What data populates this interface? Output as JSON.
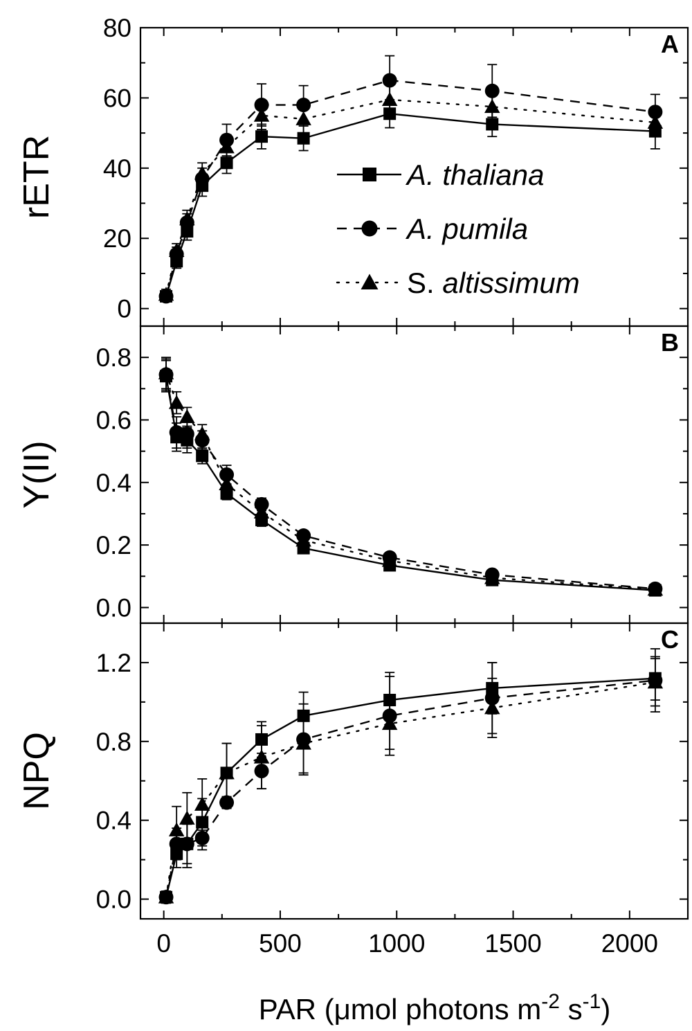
{
  "chart_data": {
    "type": "line",
    "x_axis": {
      "label_text": "PAR (",
      "label_mu": "μ",
      "label_unit": "mol photons m",
      "label_sup1": "-2",
      "label_s": " s",
      "label_sup2": "-1",
      "label_close": ")",
      "xlim": [
        -100,
        2250
      ],
      "ticks": [
        0,
        500,
        1000,
        1500,
        2000
      ],
      "tick_labels": [
        "0",
        "500",
        "1000",
        "1500",
        "2000"
      ]
    },
    "x": [
      10,
      55,
      100,
      165,
      270,
      420,
      600,
      970,
      1410,
      2110
    ],
    "legend": [
      {
        "series": 0,
        "prefix": "A.",
        "name": "thaliana"
      },
      {
        "series": 1,
        "prefix": "A.",
        "name": "pumila"
      },
      {
        "series": 2,
        "prefix": "S.",
        "name": "altissimum"
      }
    ],
    "series_styles": [
      {
        "name": "A. thaliana",
        "marker": "square",
        "line": "solid"
      },
      {
        "name": "A. pumila",
        "marker": "circle",
        "line": "dashed"
      },
      {
        "name": "S. altissimum",
        "marker": "triangle",
        "line": "dotted"
      }
    ],
    "panels": [
      {
        "label": "A",
        "ylabel": "rETR",
        "ylim": [
          -5,
          80
        ],
        "yticks": [
          0,
          20,
          40,
          60,
          80
        ],
        "ytick_labels": [
          "0",
          "20",
          "40",
          "60",
          "80"
        ],
        "series": [
          {
            "name": "A. thaliana",
            "values": [
              3.5,
              13.5,
              22,
              35,
              41.5,
              49,
              48.5,
              55.5,
              52.5,
              50.5
            ],
            "errors": [
              1.5,
              2,
              2.5,
              3,
              3,
              3.5,
              3.5,
              4,
              3.5,
              5
            ]
          },
          {
            "name": "A. pumila",
            "values": [
              3.5,
              15.5,
              24.5,
              37,
              48,
              58,
              58,
              65,
              62,
              56
            ],
            "errors": [
              1.5,
              2,
              2.5,
              3,
              4.5,
              6,
              5.5,
              7,
              7.5,
              5
            ]
          },
          {
            "name": "S. altissimum",
            "values": [
              4,
              16.5,
              25.5,
              38.5,
              46,
              55,
              54,
              59.5,
              57.5,
              53
            ],
            "errors": [
              1.5,
              2,
              2.5,
              3,
              3.5,
              4,
              4,
              4.5,
              4,
              4
            ]
          }
        ]
      },
      {
        "label": "B",
        "ylabel": "Y(II)",
        "ylim": [
          -0.05,
          0.9
        ],
        "yticks": [
          0.0,
          0.2,
          0.4,
          0.6,
          0.8
        ],
        "ytick_labels": [
          "0.0",
          "0.2",
          "0.4",
          "0.6",
          "0.8"
        ],
        "series": [
          {
            "name": "A. thaliana",
            "values": [
              0.74,
              0.545,
              0.535,
              0.485,
              0.365,
              0.28,
              0.19,
              0.135,
              0.088,
              0.055
            ],
            "errors": [
              0.05,
              0.045,
              0.04,
              0.025,
              0.02,
              0.02,
              0.015,
              0.01,
              0.01,
              0.008
            ]
          },
          {
            "name": "A. pumila",
            "values": [
              0.745,
              0.56,
              0.555,
              0.535,
              0.425,
              0.33,
              0.23,
              0.16,
              0.105,
              0.06
            ],
            "errors": [
              0.05,
              0.05,
              0.045,
              0.03,
              0.03,
              0.02,
              0.015,
              0.012,
              0.01,
              0.008
            ]
          },
          {
            "name": "S. altissimum",
            "values": [
              0.75,
              0.655,
              0.61,
              0.555,
              0.395,
              0.305,
              0.215,
              0.15,
              0.095,
              0.058
            ],
            "errors": [
              0.05,
              0.035,
              0.03,
              0.03,
              0.02,
              0.02,
              0.015,
              0.01,
              0.01,
              0.008
            ]
          }
        ]
      },
      {
        "label": "C",
        "ylabel": "NPQ",
        "ylim": [
          -0.1,
          1.4
        ],
        "yticks": [
          0.0,
          0.4,
          0.8,
          1.2
        ],
        "ytick_labels": [
          "0.0",
          "0.4",
          "0.8",
          "1.2"
        ],
        "series": [
          {
            "name": "A. thaliana",
            "values": [
              0.01,
              0.23,
              0.28,
              0.39,
              0.64,
              0.81,
              0.93,
              1.01,
              1.07,
              1.12
            ],
            "errors": [
              0.03,
              0.07,
              0.1,
              0.12,
              0.15,
              0.09,
              0.12,
              0.14,
              0.13,
              0.11
            ]
          },
          {
            "name": "A. pumila",
            "values": [
              0.01,
              0.28,
              0.28,
              0.31,
              0.49,
              0.65,
              0.81,
              0.93,
              1.02,
              1.11
            ],
            "errors": [
              0.03,
              0.08,
              0.12,
              0.06,
              0.03,
              0.09,
              0.18,
              0.2,
              0.18,
              0.16
            ]
          },
          {
            "name": "S. altissimum",
            "values": [
              0.01,
              0.35,
              0.41,
              0.48,
              0.64,
              0.72,
              0.79,
              0.89,
              0.97,
              1.1
            ],
            "errors": [
              0.03,
              0.12,
              0.13,
              0.13,
              0.15,
              0.16,
              0.15,
              0.13,
              0.15,
              0.12
            ]
          }
        ]
      }
    ]
  }
}
